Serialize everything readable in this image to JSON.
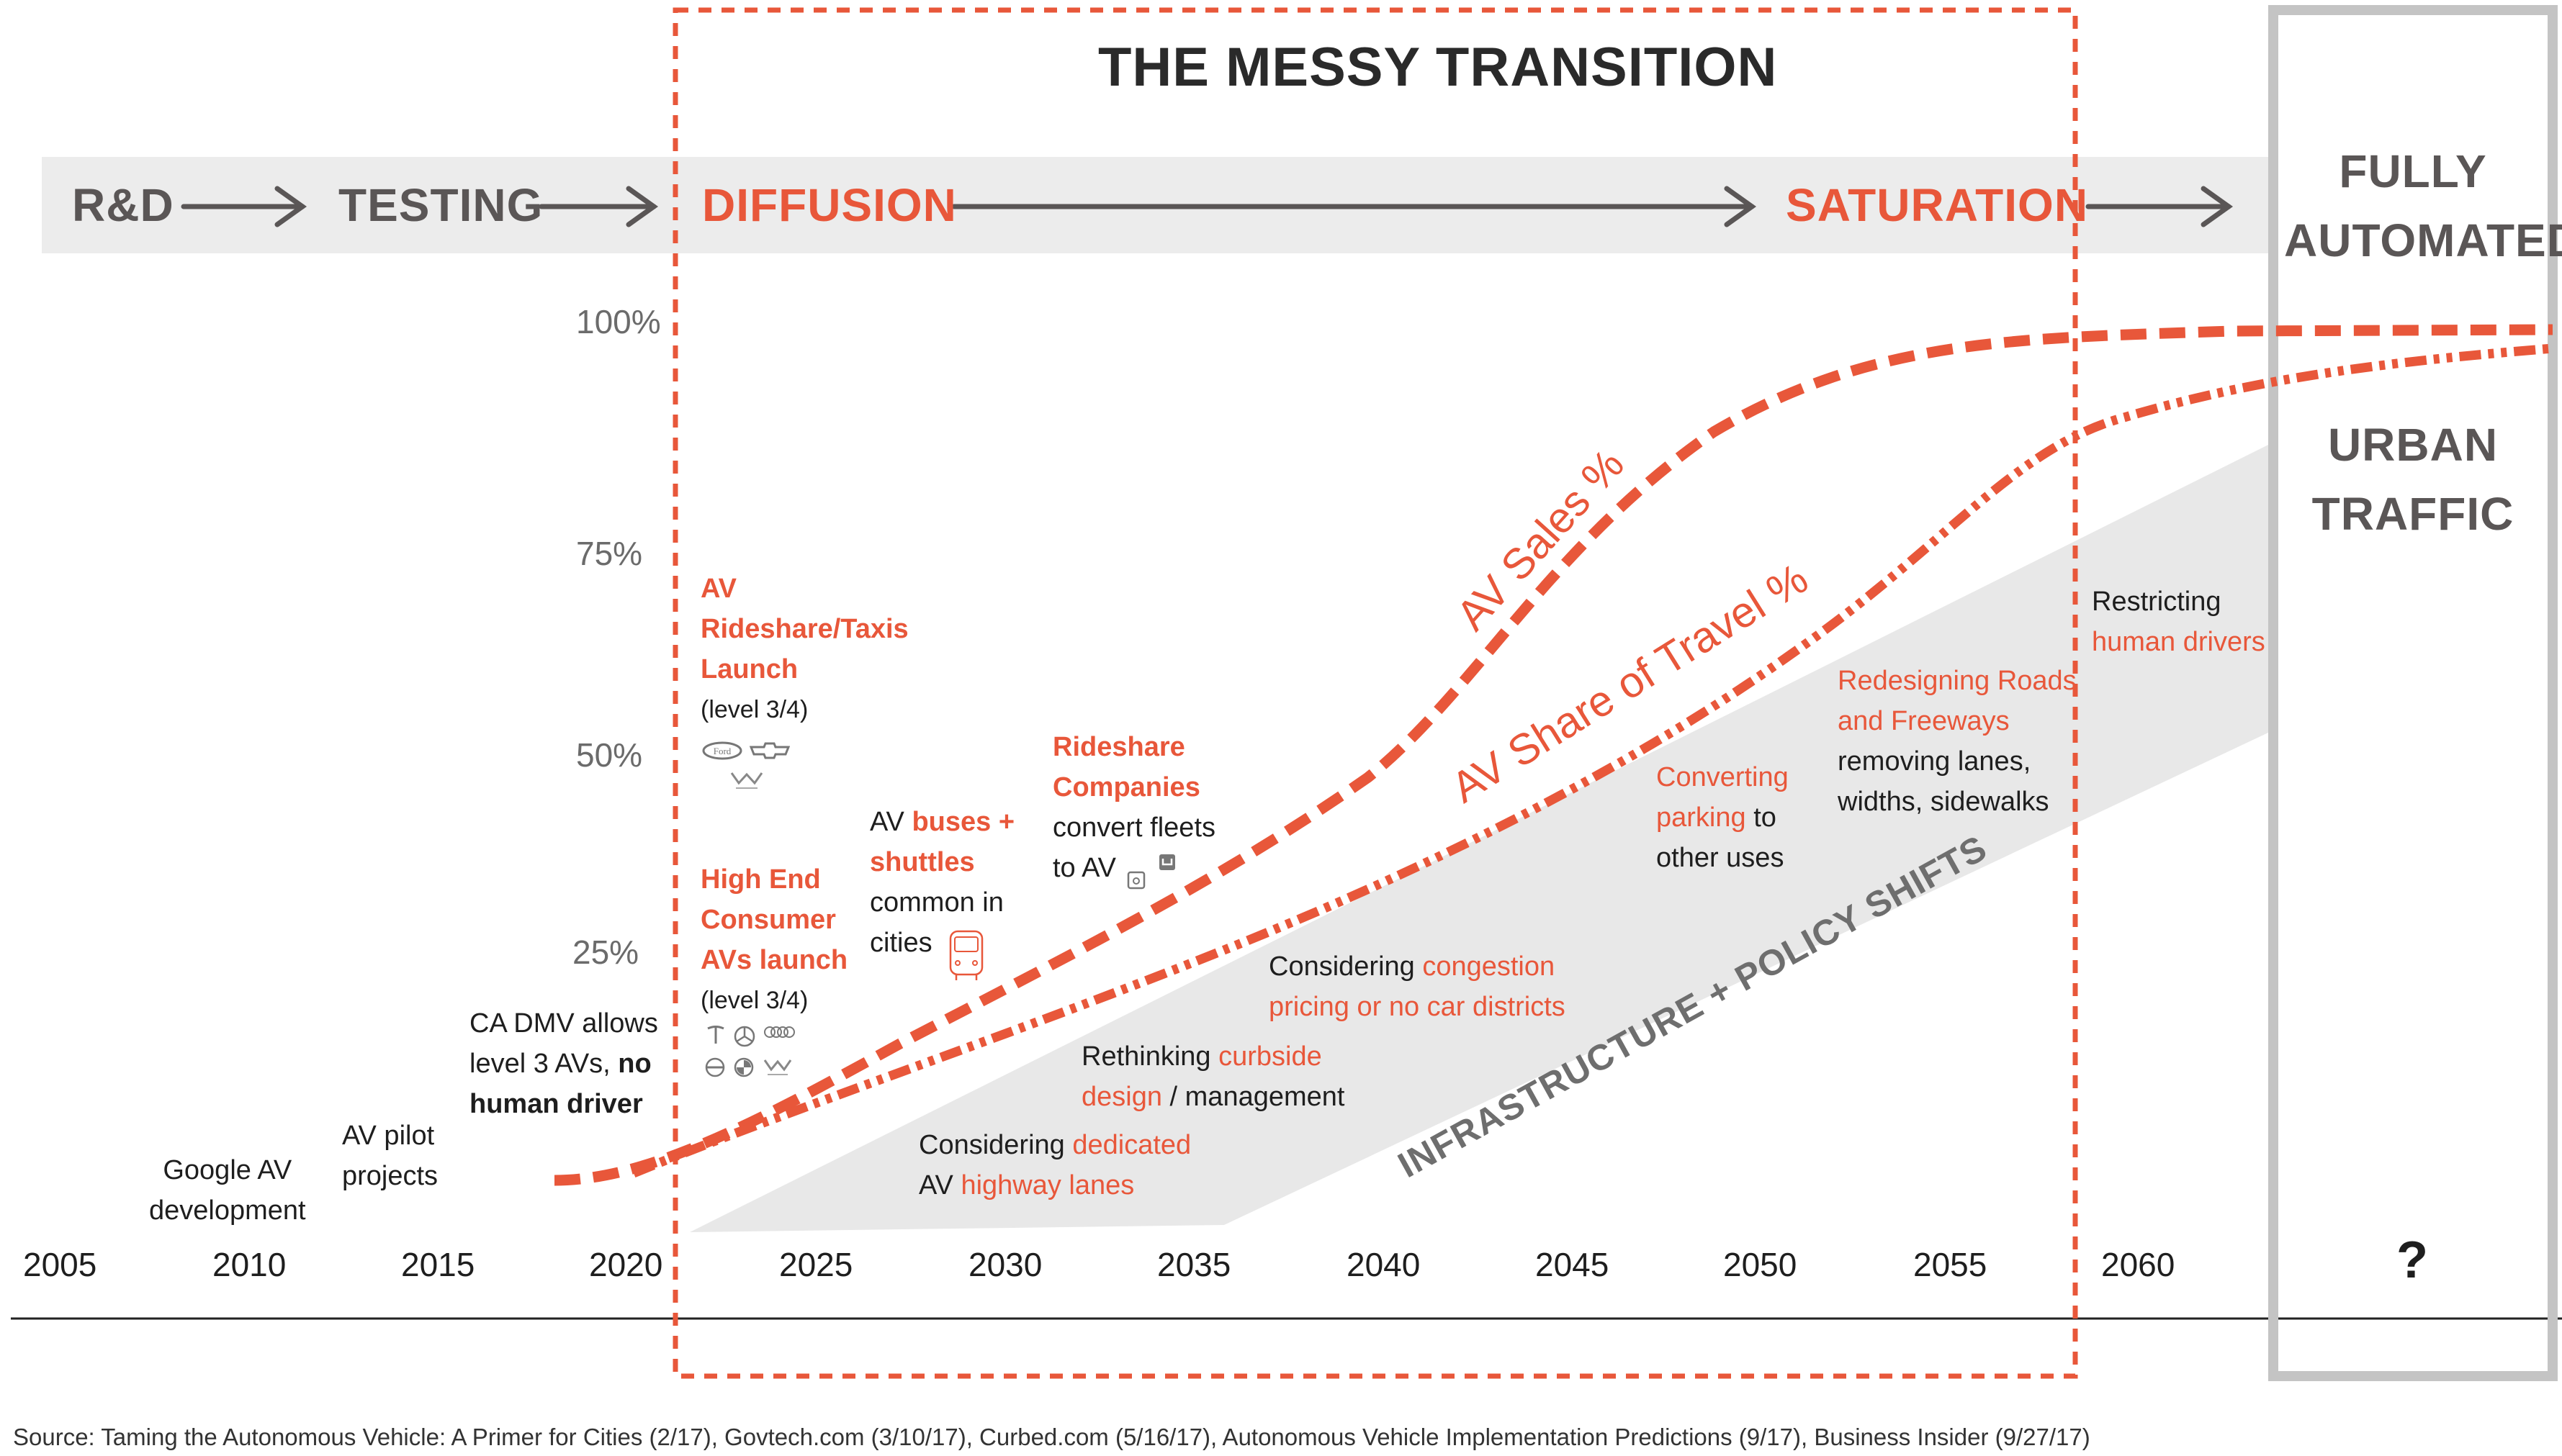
{
  "title": "THE MESSY TRANSITION",
  "stages": {
    "rd": "R&D",
    "testing": "TESTING",
    "diffusion": "DIFFUSION",
    "saturation": "SATURATION",
    "fully_automated": [
      "FULLY",
      "AUTOMATED"
    ],
    "urban_traffic": [
      "URBAN",
      "TRAFFIC"
    ]
  },
  "years": [
    "2005",
    "2010",
    "2015",
    "2020",
    "2025",
    "2030",
    "2035",
    "2040",
    "2045",
    "2050",
    "2055",
    "2060",
    "?"
  ],
  "percent_ticks": [
    "100%",
    "75%",
    "50%",
    "25%"
  ],
  "curve_labels": {
    "sales": "AV Sales %",
    "travel": "AV Share of Travel %",
    "infrastructure": "INFRASTRUCTURE + POLICY  SHIFTS"
  },
  "milestones": {
    "google": [
      "Google AV",
      "development"
    ],
    "pilot": [
      "AV pilot",
      "projects"
    ],
    "ca_dmv": {
      "l1": "CA DMV allows",
      "l2a": "level 3 AVs, ",
      "l2b": "no",
      "l3": "human driver"
    },
    "rideshare_launch": {
      "l1": "AV",
      "l2": "Rideshare/Taxis",
      "l3": "Launch",
      "l4": "(level 3/4)"
    },
    "high_end": {
      "l1": "High End",
      "l2": "Consumer",
      "l3": "AVs launch",
      "l4": "(level 3/4)"
    },
    "buses": {
      "l1a": "AV ",
      "l1b": "buses +",
      "l2": "shuttles",
      "l3": "common in",
      "l4": "cities"
    },
    "rideshare_companies": {
      "l1": "Rideshare",
      "l2": "Companies",
      "l3": "convert fleets",
      "l4": "to AV"
    }
  },
  "infrastructure_notes": {
    "dedicated": {
      "a": "Considering ",
      "b": "dedicated",
      "c": "AV ",
      "d": "highway lanes"
    },
    "curbside": {
      "a": "Rethinking ",
      "b": "curbside",
      "c": "design",
      "d": " / management"
    },
    "congestion": {
      "a": "Considering ",
      "b": "congestion",
      "c": "pricing or no car districts"
    },
    "parking": {
      "a": "Converting",
      "b": "parking",
      "c": " to",
      "d": "other uses"
    },
    "roads": {
      "a": "Redesigning Roads",
      "b": "and Freeways",
      "c": "removing lanes,",
      "d": "widths, sidewalks"
    },
    "restricting": {
      "a": "Restricting",
      "b": "human drivers"
    }
  },
  "source": "Source: Taming the Autonomous Vehicle: A Primer for Cities (2/17), Govtech.com (3/10/17), Curbed.com (5/16/17), Autonomous Vehicle Implementation Predictions (9/17), Business Insider (9/27/17)",
  "icons": [
    "right-arrow-icon",
    "ford-logo-icon",
    "chevrolet-logo-icon",
    "waymo-logo-icon",
    "tesla-logo-icon",
    "mercedes-logo-icon",
    "audi-logo-icon",
    "volvo-logo-icon",
    "bmw-logo-icon",
    "bus-icon",
    "lyft-logo-icon",
    "uber-logo-icon"
  ],
  "colors": {
    "accent": "#e8573a",
    "stage_gray": "#5a5656",
    "band": "#ececec",
    "wedge": "#e8e8e8",
    "frame_gray": "#c4c4c4"
  }
}
